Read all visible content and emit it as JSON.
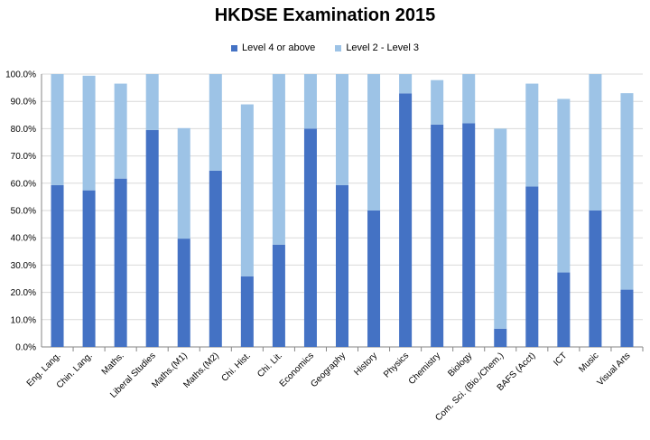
{
  "chart_data": {
    "type": "bar",
    "stacked": true,
    "title": "HKDSE Examination 2015",
    "xlabel": "",
    "ylabel": "",
    "ylim": [
      0,
      100
    ],
    "yticks": [
      "0.0%",
      "10.0%",
      "20.0%",
      "30.0%",
      "40.0%",
      "50.0%",
      "60.0%",
      "70.0%",
      "80.0%",
      "90.0%",
      "100.0%"
    ],
    "legend_position": "top-center",
    "grid": true,
    "categories": [
      "Eng. Lang.",
      "Chin. Lang.",
      "Maths.",
      "Liberal Studies",
      "Maths.(M1)",
      "Maths.(M2)",
      "Chi. Hist.",
      "Chi. Lit.",
      "Economics",
      "Geography",
      "History",
      "Physics",
      "Chemistry",
      "Biology",
      "Com. Sci. (Bio./Chem.)",
      "BAFS (Acct)",
      "ICT",
      "Music",
      "Visual Arts"
    ],
    "series": [
      {
        "name": "Level 4 or above",
        "color": "#4472C4",
        "values": [
          59.3,
          57.4,
          61.7,
          79.5,
          39.7,
          64.6,
          25.9,
          37.5,
          80.0,
          59.3,
          50.0,
          92.9,
          81.5,
          82.0,
          6.7,
          58.8,
          27.3,
          50.0,
          21.0
        ]
      },
      {
        "name": "Level 2 - Level 3",
        "color": "#9DC3E6",
        "values": [
          40.7,
          42.0,
          34.8,
          20.5,
          40.5,
          35.4,
          63.0,
          62.5,
          20.0,
          40.7,
          50.0,
          7.1,
          16.3,
          18.0,
          73.3,
          37.7,
          63.6,
          50.0,
          72.0
        ]
      }
    ]
  }
}
